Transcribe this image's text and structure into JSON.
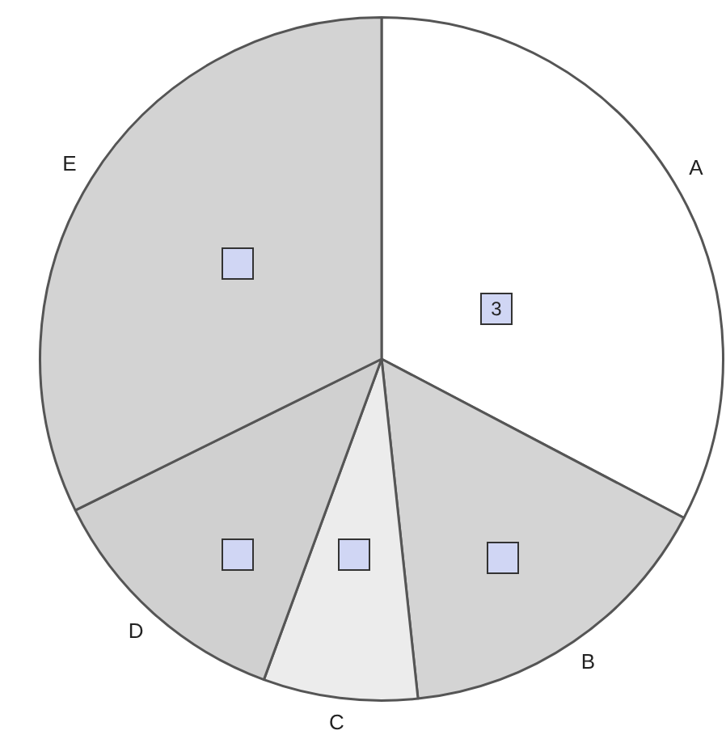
{
  "chart_data": {
    "type": "pie",
    "categories": [
      "A",
      "B",
      "C",
      "D",
      "E"
    ],
    "values": [
      32.7,
      15.6,
      7.3,
      12.1,
      32.3
    ],
    "colors": [
      "#ffffff",
      "#d4d4d4",
      "#ececec",
      "#d0d0d0",
      "#d3d3d3"
    ],
    "annotations": [
      "3"
    ]
  }
}
